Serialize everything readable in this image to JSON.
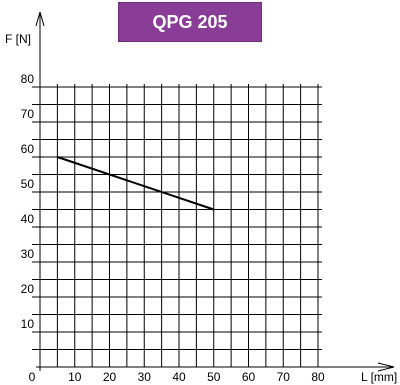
{
  "header": {
    "title": "QPG 205",
    "title_bg": "#8a3d97"
  },
  "chart_data": {
    "type": "line",
    "title": "QPG 205",
    "xlabel": "L [mm]",
    "ylabel": "F [N]",
    "xlim": [
      0,
      80
    ],
    "ylim": [
      0,
      80
    ],
    "xticks": [
      0,
      10,
      20,
      30,
      40,
      50,
      60,
      70,
      80
    ],
    "yticks": [
      10,
      20,
      30,
      40,
      50,
      60,
      70,
      80
    ],
    "grid": true,
    "series": [
      {
        "x": [
          5,
          50
        ],
        "y": [
          60,
          45
        ],
        "color": "#000000"
      }
    ]
  }
}
